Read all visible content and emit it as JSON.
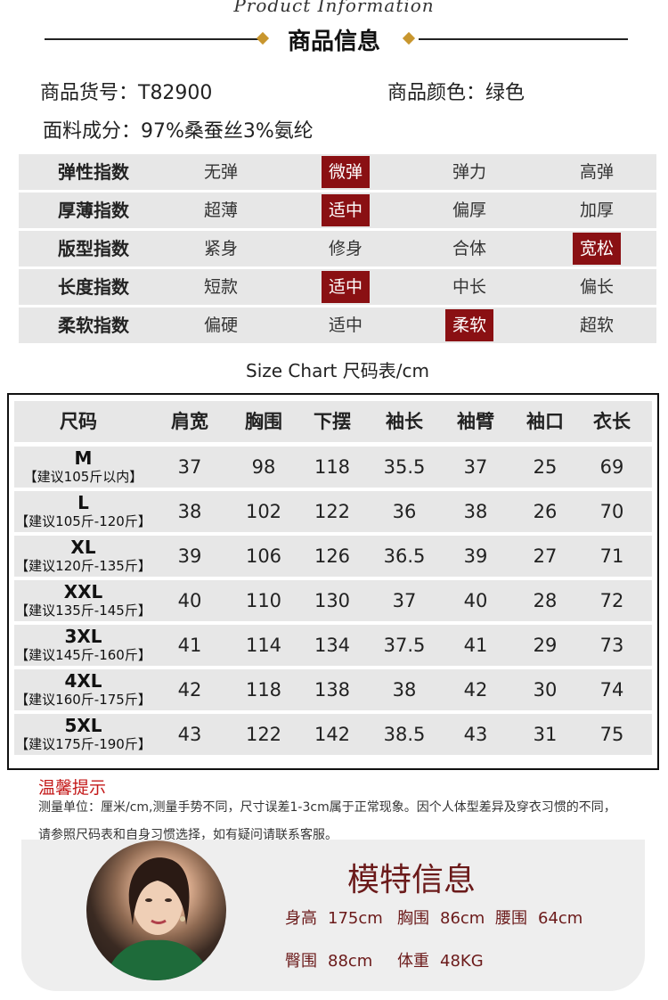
{
  "header": {
    "subtitle": "Product Information",
    "title": "商品信息"
  },
  "product": {
    "sku": "商品货号：T82900",
    "color": "商品颜色：绿色",
    "fabric": "面料成分：97%桑蚕丝3%氨纶"
  },
  "index_table": [
    {
      "label": "弹性指数",
      "options": [
        "无弹",
        "微弹",
        "弹力",
        "高弹"
      ],
      "selected": 1
    },
    {
      "label": "厚薄指数",
      "options": [
        "超薄",
        "适中",
        "偏厚",
        "加厚"
      ],
      "selected": 1
    },
    {
      "label": "版型指数",
      "options": [
        "紧身",
        "修身",
        "合体",
        "宽松"
      ],
      "selected": 3
    },
    {
      "label": "长度指数",
      "options": [
        "短款",
        "适中",
        "中长",
        "偏长"
      ],
      "selected": 1
    },
    {
      "label": "柔软指数",
      "options": [
        "偏硬",
        "适中",
        "柔软",
        "超软"
      ],
      "selected": 2
    }
  ],
  "size_chart": {
    "caption": "Size Chart 尺码表/cm",
    "columns": [
      "尺码",
      "肩宽",
      "胸围",
      "下摆",
      "袖长",
      "袖臂",
      "袖口",
      "衣长"
    ],
    "rows": [
      {
        "size": "M",
        "weight": "【建议105斤以内】",
        "values": [
          "37",
          "98",
          "118",
          "35.5",
          "37",
          "25",
          "69"
        ]
      },
      {
        "size": "L",
        "weight": "【建议105斤-120斤】",
        "values": [
          "38",
          "102",
          "122",
          "36",
          "38",
          "26",
          "70"
        ]
      },
      {
        "size": "XL",
        "weight": "【建议120斤-135斤】",
        "values": [
          "39",
          "106",
          "126",
          "36.5",
          "39",
          "27",
          "71"
        ]
      },
      {
        "size": "XXL",
        "weight": "【建议135斤-145斤】",
        "values": [
          "40",
          "110",
          "130",
          "37",
          "40",
          "28",
          "72"
        ]
      },
      {
        "size": "3XL",
        "weight": "【建议145斤-160斤】",
        "values": [
          "41",
          "114",
          "134",
          "37.5",
          "41",
          "29",
          "73"
        ]
      },
      {
        "size": "4XL",
        "weight": "【建议160斤-175斤】",
        "values": [
          "42",
          "118",
          "138",
          "38",
          "42",
          "30",
          "74"
        ]
      },
      {
        "size": "5XL",
        "weight": "【建议175斤-190斤】",
        "values": [
          "43",
          "122",
          "142",
          "38.5",
          "43",
          "31",
          "75"
        ]
      }
    ]
  },
  "tips": {
    "title": "温馨提示",
    "line1": "测量单位：厘米/cm,测量手势不同，尺寸误差1-3cm属于正常现象。因个人体型差异及穿衣习惯的不同，",
    "line2": "请参照尺码表和自身习惯选择，如有疑问请联系客服。"
  },
  "model": {
    "title": "模特信息",
    "height_label": "身高",
    "height": "175cm",
    "bust_label": "胸围",
    "bust": "86cm",
    "waist_label": "腰围",
    "waist": "64cm",
    "hip_label": "臀围",
    "hip": "88cm",
    "weight_label": "体重",
    "weight": "48KG"
  },
  "colors": {
    "accent_red": "#8a1013",
    "row_gray": "#e7e7e7",
    "diamond_gold": "#c8962e",
    "tips_red": "#c41a1a",
    "model_text": "#6b1a1a"
  }
}
